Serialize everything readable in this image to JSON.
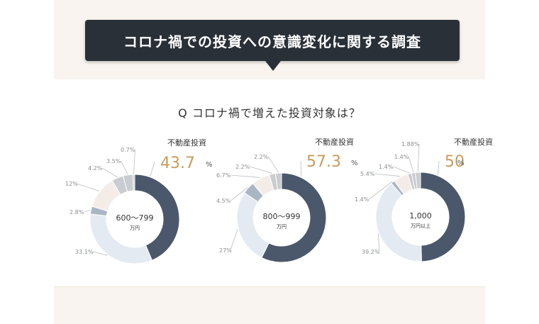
{
  "header": {
    "title": "コロナ禍での投資への意識変化に関する調査"
  },
  "question": "Q  コロナ禍で増えた投資対象は？",
  "colors": {
    "main": "#4b586b",
    "light": "#e4eaf1",
    "gray": "#c9ccd0",
    "mid": "#a9b6c3",
    "pale": "#f4ede7",
    "accent": "#cc9a5a"
  },
  "chart_data": [
    {
      "type": "donut",
      "center_label": "600〜799",
      "center_unit": "万円",
      "highlight_label": "不動産投資",
      "highlight_value": "43.7",
      "highlight_unit": "%",
      "slice_values": [
        43.7,
        33.1,
        2.8,
        12,
        4.2,
        3.5,
        0.7
      ],
      "slice_labels": [
        "43.7",
        "33.1%",
        "2.8%",
        "12%",
        "4.2%",
        "3.5%",
        "0.7%"
      ]
    },
    {
      "type": "donut",
      "center_label": "800〜999",
      "center_unit": "万円",
      "highlight_label": "不動産投資",
      "highlight_value": "57.3",
      "highlight_unit": "%",
      "slice_values": [
        57.3,
        27,
        4.5,
        6.7,
        2.2,
        2.2
      ],
      "slice_labels": [
        "57.3",
        "27%",
        "4.5%",
        "6.7%",
        "2.2%",
        "2.2%"
      ]
    },
    {
      "type": "donut",
      "center_label": "1,000",
      "center_unit": "万円以上",
      "highlight_label": "不動産投資",
      "highlight_value": "50",
      "highlight_unit": "%",
      "slice_values": [
        50,
        39.2,
        1.4,
        5.4,
        1.4,
        1.4,
        1.88
      ],
      "slice_labels": [
        "50",
        "39.2%",
        "1.4%",
        "5.4%",
        "1.4%",
        "1.4%",
        "1.88%"
      ]
    }
  ]
}
